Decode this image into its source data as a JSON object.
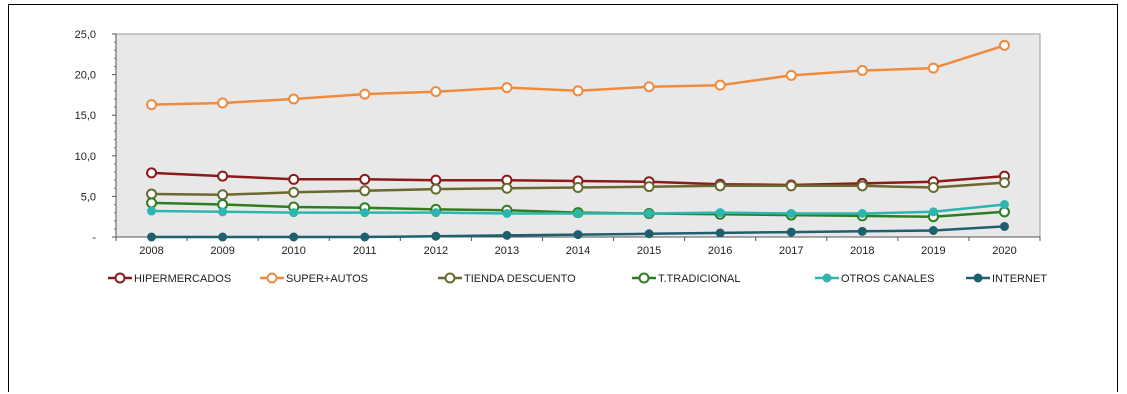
{
  "chart_data": {
    "type": "line",
    "title": "",
    "xlabel": "",
    "ylabel": "",
    "x": [
      "2008",
      "2009",
      "2010",
      "2011",
      "2012",
      "2013",
      "2014",
      "2015",
      "2016",
      "2017",
      "2018",
      "2019",
      "2020"
    ],
    "ylim": [
      0,
      25
    ],
    "yticks": [
      "-",
      "5,0",
      "10,0",
      "15,0",
      "20,0",
      "25,0"
    ],
    "grid": false,
    "plot_background": "#e8e8e8",
    "legend_position": "bottom",
    "series": [
      {
        "name": "HIPERMERCADOS",
        "color": "#8b1a1a",
        "values": [
          7.9,
          7.5,
          7.1,
          7.1,
          7.0,
          7.0,
          6.9,
          6.8,
          6.5,
          6.4,
          6.6,
          6.8,
          7.5
        ]
      },
      {
        "name": "SUPER+AUTOS",
        "color": "#f08a3c",
        "values": [
          16.3,
          16.5,
          17.0,
          17.6,
          17.9,
          18.4,
          18.0,
          18.5,
          18.7,
          19.9,
          20.5,
          20.8,
          23.6
        ]
      },
      {
        "name": "TIENDA DESCUENTO",
        "color": "#6b6a2e",
        "values": [
          5.3,
          5.2,
          5.5,
          5.7,
          5.9,
          6.0,
          6.1,
          6.2,
          6.3,
          6.3,
          6.3,
          6.1,
          6.7
        ]
      },
      {
        "name": "T.TRADICIONAL",
        "color": "#2e7d1f",
        "values": [
          4.2,
          4.0,
          3.7,
          3.6,
          3.4,
          3.3,
          3.0,
          2.9,
          2.8,
          2.7,
          2.6,
          2.5,
          3.1
        ]
      },
      {
        "name": "OTROS CANALES",
        "color": "#2eb5b0",
        "values": [
          3.2,
          3.1,
          3.0,
          3.0,
          3.0,
          2.9,
          2.9,
          2.9,
          3.0,
          2.9,
          2.9,
          3.1,
          4.0
        ]
      },
      {
        "name": "INTERNET",
        "color": "#1f5f6e",
        "values": [
          0.0,
          0.0,
          0.0,
          0.0,
          0.1,
          0.2,
          0.3,
          0.4,
          0.5,
          0.6,
          0.7,
          0.8,
          1.3
        ]
      }
    ]
  }
}
